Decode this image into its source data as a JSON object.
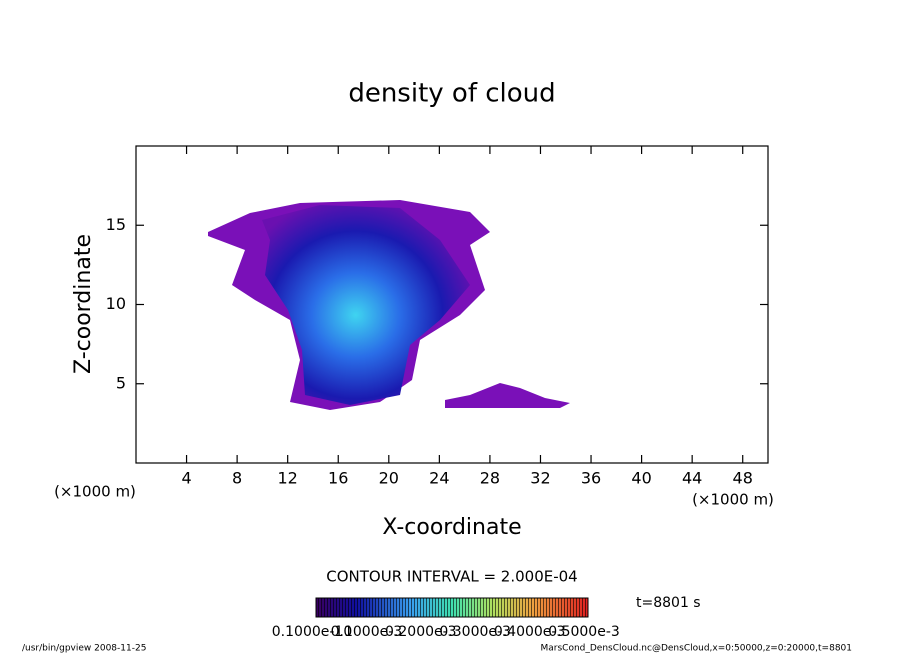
{
  "chart_data": {
    "type": "contour",
    "title": "density of cloud",
    "xlabel": "X-coordinate",
    "ylabel": "Z-coordinate",
    "x_units": "(×1000 m)",
    "y_units": "(×1000 m)",
    "xlim": [
      0,
      50
    ],
    "xticks": [
      4,
      8,
      12,
      16,
      20,
      24,
      28,
      32,
      36,
      40,
      44,
      48
    ],
    "ylim": [
      0,
      20
    ],
    "yticks": [
      5,
      10,
      15
    ],
    "contour_interval": "CONTOUR INTERVAL = 2.000E-04",
    "colorbar_labels": [
      "0.1000e-10",
      "0.1000e-3",
      "0.2000e-3",
      "0.3000e-3",
      "0.4000e-3",
      "0.5000e-3"
    ],
    "time_label": "t=8801 s",
    "footer_left": "/usr/bin/gpview   2008-11-25",
    "footer_right": "MarsCond_DensCloud.nc@DensCloud,x=0:50000,z=0:20000,t=8801"
  }
}
